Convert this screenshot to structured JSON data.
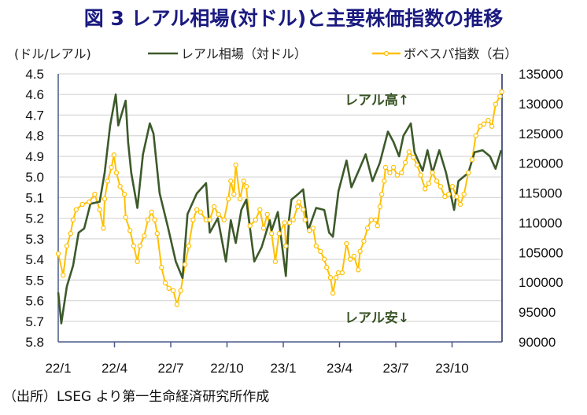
{
  "title": "図 3  レアル相場(対ドル)と主要株価指数の推移",
  "source": "（出所）LSEG より第一生命経済研究所作成",
  "chart_data": {
    "type": "line",
    "title": "図 3  レアル相場(対ドル)と主要株価指数の推移",
    "ylabel_left": "(ドル/レアル)",
    "legend_position": "top",
    "grid": true,
    "left_axis": {
      "ylim": [
        4.5,
        5.8
      ],
      "inverted": true,
      "ticks": [
        "4.5",
        "4.6",
        "4.7",
        "4.8",
        "4.9",
        "5.0",
        "5.1",
        "5.2",
        "5.3",
        "5.4",
        "5.5",
        "5.6",
        "5.7",
        "5.8"
      ]
    },
    "right_axis": {
      "ylim": [
        90000,
        135000
      ],
      "ticks": [
        "135000",
        "130000",
        "125000",
        "120000",
        "115000",
        "110000",
        "105000",
        "100000",
        "95000",
        "90000"
      ]
    },
    "xlim": [
      "2022-01-01",
      "2023-12-20"
    ],
    "x_ticks": [
      {
        "date": "2022-01-01",
        "label": "22/1"
      },
      {
        "date": "2022-04-01",
        "label": "22/4"
      },
      {
        "date": "2022-07-01",
        "label": "22/7"
      },
      {
        "date": "2022-10-01",
        "label": "22/10"
      },
      {
        "date": "2023-01-01",
        "label": "23/1"
      },
      {
        "date": "2023-04-01",
        "label": "23/4"
      },
      {
        "date": "2023-07-01",
        "label": "23/7"
      },
      {
        "date": "2023-10-01",
        "label": "23/10"
      }
    ],
    "annotations": {
      "up": "レアル高↑",
      "down": "レアル安↓"
    },
    "series": [
      {
        "name": "レアル相場（対ドル）",
        "axis": "left",
        "color": "#3d5a2a",
        "markers": false,
        "points": [
          [
            "2022-01-01",
            5.56
          ],
          [
            "2022-01-06",
            5.71
          ],
          [
            "2022-01-15",
            5.53
          ],
          [
            "2022-01-25",
            5.43
          ],
          [
            "2022-02-03",
            5.27
          ],
          [
            "2022-02-12",
            5.25
          ],
          [
            "2022-02-22",
            5.13
          ],
          [
            "2022-03-09",
            5.12
          ],
          [
            "2022-03-17",
            4.98
          ],
          [
            "2022-03-26",
            4.75
          ],
          [
            "2022-04-04",
            4.6
          ],
          [
            "2022-04-08",
            4.75
          ],
          [
            "2022-04-14",
            4.69
          ],
          [
            "2022-04-20",
            4.63
          ],
          [
            "2022-04-24",
            4.83
          ],
          [
            "2022-04-29",
            4.98
          ],
          [
            "2022-05-09",
            5.15
          ],
          [
            "2022-05-18",
            4.89
          ],
          [
            "2022-05-29",
            4.74
          ],
          [
            "2022-06-04",
            4.79
          ],
          [
            "2022-06-14",
            5.08
          ],
          [
            "2022-06-27",
            5.24
          ],
          [
            "2022-07-10",
            5.41
          ],
          [
            "2022-07-21",
            5.49
          ],
          [
            "2022-07-29",
            5.18
          ],
          [
            "2022-08-13",
            5.08
          ],
          [
            "2022-08-28",
            5.03
          ],
          [
            "2022-09-03",
            5.27
          ],
          [
            "2022-09-16",
            5.2
          ],
          [
            "2022-09-29",
            5.41
          ],
          [
            "2022-10-07",
            5.21
          ],
          [
            "2022-10-15",
            5.32
          ],
          [
            "2022-10-24",
            5.16
          ],
          [
            "2022-11-01",
            5.11
          ],
          [
            "2022-11-14",
            5.41
          ],
          [
            "2022-11-26",
            5.34
          ],
          [
            "2022-12-09",
            5.21
          ],
          [
            "2022-12-12",
            5.26
          ],
          [
            "2022-12-22",
            5.17
          ],
          [
            "2023-01-04",
            5.48
          ],
          [
            "2023-01-09",
            5.21
          ],
          [
            "2023-01-13",
            5.11
          ],
          [
            "2023-01-25",
            5.08
          ],
          [
            "2023-02-01",
            5.06
          ],
          [
            "2023-02-09",
            5.26
          ],
          [
            "2023-02-22",
            5.15
          ],
          [
            "2023-03-07",
            5.16
          ],
          [
            "2023-03-15",
            5.27
          ],
          [
            "2023-03-21",
            5.29
          ],
          [
            "2023-03-30",
            5.07
          ],
          [
            "2023-04-12",
            4.92
          ],
          [
            "2023-04-20",
            5.05
          ],
          [
            "2023-05-03",
            4.96
          ],
          [
            "2023-05-13",
            4.89
          ],
          [
            "2023-05-24",
            5.02
          ],
          [
            "2023-06-05",
            4.93
          ],
          [
            "2023-06-18",
            4.78
          ],
          [
            "2023-06-27",
            4.83
          ],
          [
            "2023-07-06",
            4.9
          ],
          [
            "2023-07-13",
            4.8
          ],
          [
            "2023-07-25",
            4.74
          ],
          [
            "2023-07-31",
            4.88
          ],
          [
            "2023-08-13",
            4.97
          ],
          [
            "2023-08-21",
            4.87
          ],
          [
            "2023-08-29",
            4.98
          ],
          [
            "2023-09-09",
            4.87
          ],
          [
            "2023-09-20",
            4.98
          ],
          [
            "2023-10-03",
            5.16
          ],
          [
            "2023-10-10",
            5.02
          ],
          [
            "2023-10-26",
            4.98
          ],
          [
            "2023-11-05",
            4.88
          ],
          [
            "2023-11-18",
            4.87
          ],
          [
            "2023-11-30",
            4.9
          ],
          [
            "2023-12-09",
            4.96
          ],
          [
            "2023-12-18",
            4.87
          ]
        ]
      },
      {
        "name": "ボベスパ指数（右）",
        "axis": "right",
        "color": "#ffc000",
        "markers": true,
        "points": [
          [
            "2022-01-01",
            104800
          ],
          [
            "2022-01-09",
            101200
          ],
          [
            "2022-01-15",
            106100
          ],
          [
            "2022-01-21",
            108200
          ],
          [
            "2022-01-25",
            110500
          ],
          [
            "2022-01-30",
            112200
          ],
          [
            "2022-02-09",
            113100
          ],
          [
            "2022-02-20",
            113500
          ],
          [
            "2022-03-01",
            114800
          ],
          [
            "2022-03-09",
            112200
          ],
          [
            "2022-03-15",
            109100
          ],
          [
            "2022-03-17",
            114000
          ],
          [
            "2022-03-22",
            117000
          ],
          [
            "2022-03-28",
            119300
          ],
          [
            "2022-04-01",
            121400
          ],
          [
            "2022-04-05",
            118400
          ],
          [
            "2022-04-11",
            116100
          ],
          [
            "2022-04-18",
            114800
          ],
          [
            "2022-04-20",
            110900
          ],
          [
            "2022-04-27",
            108700
          ],
          [
            "2022-05-03",
            106100
          ],
          [
            "2022-05-09",
            103500
          ],
          [
            "2022-05-13",
            106100
          ],
          [
            "2022-05-20",
            107800
          ],
          [
            "2022-05-26",
            110500
          ],
          [
            "2022-06-01",
            111800
          ],
          [
            "2022-06-06",
            110500
          ],
          [
            "2022-06-10",
            108200
          ],
          [
            "2022-06-17",
            102500
          ],
          [
            "2022-06-23",
            99900
          ],
          [
            "2022-06-29",
            99000
          ],
          [
            "2022-07-06",
            98600
          ],
          [
            "2022-07-12",
            96300
          ],
          [
            "2022-07-18",
            98600
          ],
          [
            "2022-07-25",
            103000
          ],
          [
            "2022-07-31",
            106100
          ],
          [
            "2022-08-07",
            110500
          ],
          [
            "2022-08-13",
            112200
          ],
          [
            "2022-08-19",
            111800
          ],
          [
            "2022-08-28",
            110500
          ],
          [
            "2022-09-03",
            110500
          ],
          [
            "2022-09-10",
            112700
          ],
          [
            "2022-09-17",
            111400
          ],
          [
            "2022-09-26",
            110500
          ],
          [
            "2022-10-03",
            114000
          ],
          [
            "2022-10-07",
            117000
          ],
          [
            "2022-10-12",
            114800
          ],
          [
            "2022-10-15",
            119700
          ],
          [
            "2022-10-22",
            114000
          ],
          [
            "2022-10-28",
            117000
          ],
          [
            "2022-11-01",
            116100
          ],
          [
            "2022-11-07",
            109500
          ],
          [
            "2022-11-16",
            110500
          ],
          [
            "2022-11-23",
            112200
          ],
          [
            "2022-11-29",
            109100
          ],
          [
            "2022-12-05",
            111400
          ],
          [
            "2022-12-12",
            108200
          ],
          [
            "2022-12-18",
            103500
          ],
          [
            "2022-12-24",
            108200
          ],
          [
            "2023-01-02",
            110000
          ],
          [
            "2023-01-04",
            106100
          ],
          [
            "2023-01-10",
            110000
          ],
          [
            "2023-01-16",
            110500
          ],
          [
            "2023-01-23",
            112700
          ],
          [
            "2023-01-25",
            113500
          ],
          [
            "2023-02-01",
            112200
          ],
          [
            "2023-02-04",
            110500
          ],
          [
            "2023-02-11",
            108700
          ],
          [
            "2023-02-17",
            109100
          ],
          [
            "2023-02-22",
            106100
          ],
          [
            "2023-03-01",
            105200
          ],
          [
            "2023-03-07",
            103900
          ],
          [
            "2023-03-11",
            102500
          ],
          [
            "2023-03-17",
            100800
          ],
          [
            "2023-03-21",
            98200
          ],
          [
            "2023-03-26",
            100800
          ],
          [
            "2023-03-30",
            101600
          ],
          [
            "2023-04-05",
            101600
          ],
          [
            "2023-04-12",
            106500
          ],
          [
            "2023-04-18",
            103900
          ],
          [
            "2023-04-24",
            104400
          ],
          [
            "2023-05-01",
            102100
          ],
          [
            "2023-05-04",
            105200
          ],
          [
            "2023-05-10",
            106900
          ],
          [
            "2023-05-16",
            109100
          ],
          [
            "2023-05-22",
            110500
          ],
          [
            "2023-05-29",
            110500
          ],
          [
            "2023-06-01",
            109500
          ],
          [
            "2023-06-05",
            112700
          ],
          [
            "2023-06-08",
            114800
          ],
          [
            "2023-06-12",
            117000
          ],
          [
            "2023-06-14",
            119300
          ],
          [
            "2023-06-21",
            118400
          ],
          [
            "2023-06-27",
            119300
          ],
          [
            "2023-07-03",
            118000
          ],
          [
            "2023-07-10",
            118400
          ],
          [
            "2023-07-16",
            120100
          ],
          [
            "2023-07-22",
            121900
          ],
          [
            "2023-07-29",
            121000
          ],
          [
            "2023-08-04",
            119700
          ],
          [
            "2023-08-10",
            118000
          ],
          [
            "2023-08-17",
            115700
          ],
          [
            "2023-08-23",
            116600
          ],
          [
            "2023-08-29",
            118400
          ],
          [
            "2023-09-05",
            117000
          ],
          [
            "2023-09-11",
            116100
          ],
          [
            "2023-09-18",
            114400
          ],
          [
            "2023-09-24",
            114800
          ],
          [
            "2023-09-30",
            116100
          ],
          [
            "2023-10-07",
            114400
          ],
          [
            "2023-10-13",
            113100
          ],
          [
            "2023-10-19",
            114800
          ],
          [
            "2023-10-26",
            118400
          ],
          [
            "2023-11-01",
            120600
          ],
          [
            "2023-11-07",
            124600
          ],
          [
            "2023-11-14",
            126200
          ],
          [
            "2023-11-20",
            126600
          ],
          [
            "2023-11-27",
            127200
          ],
          [
            "2023-12-03",
            126200
          ],
          [
            "2023-12-09",
            129900
          ],
          [
            "2023-12-16",
            131200
          ],
          [
            "2023-12-19",
            132000
          ]
        ]
      }
    ]
  }
}
